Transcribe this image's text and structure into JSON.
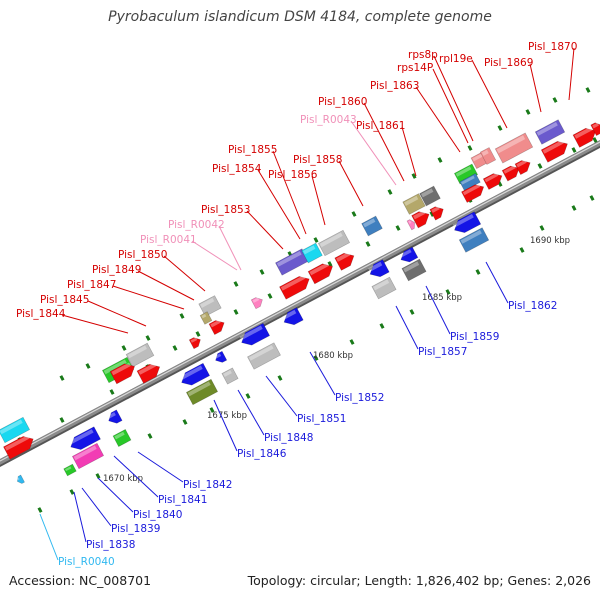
{
  "title": "Pyrobaculum islandicum DSM 4184, complete genome",
  "footer": {
    "accession": "Accession: NC_008701",
    "summary": "Topology: circular; Length: 1,826,402 bp; Genes: 2,026"
  },
  "colors": {
    "forward_label": "#d40000",
    "reverse_label": "#1a1adb",
    "rna_forward_label": "#f090b8",
    "rna_reverse_label": "#30b8f0",
    "backbone": "#8a8a8a",
    "tick": "#1a7a1a"
  },
  "scale_labels": [
    "1670 kbp",
    "1675 kbp",
    "1680 kbp",
    "1685 kbp",
    "1690 kbp"
  ],
  "forward_genes": [
    "Pisl_1844",
    "Pisl_1845",
    "Pisl_1847",
    "Pisl_1849",
    "Pisl_1850",
    "Pisl_R0041",
    "Pisl_R0042",
    "Pisl_1853",
    "Pisl_1854",
    "Pisl_1855",
    "Pisl_1856",
    "Pisl_1858",
    "Pisl_R0043",
    "Pisl_1860",
    "Pisl_1861",
    "Pisl_1863",
    "rps14P",
    "rps8p",
    "rpl19e",
    "Pisl_1869",
    "Pisl_1870"
  ],
  "reverse_genes": [
    "Pisl_R0040",
    "Pisl_1838",
    "Pisl_1839",
    "Pisl_1840",
    "Pisl_1841",
    "Pisl_1842",
    "Pisl_1846",
    "Pisl_1848",
    "Pisl_1851",
    "Pisl_1852",
    "Pisl_1857",
    "Pisl_1859",
    "Pisl_1862"
  ]
}
